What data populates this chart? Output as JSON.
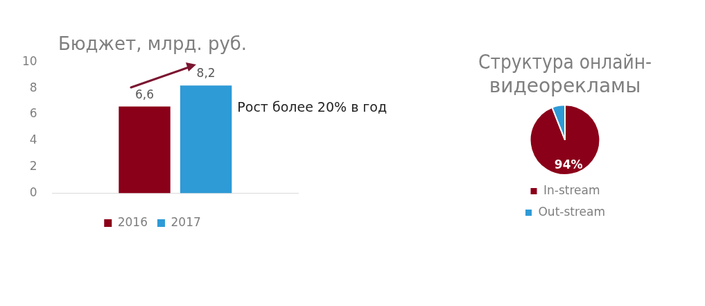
{
  "chart_data": [
    {
      "type": "bar",
      "title": "Бюджет, млрд. руб.",
      "categories": [
        null
      ],
      "series": [
        {
          "name": "2016",
          "color": "#8b0019",
          "values": [
            6.6
          ],
          "value_labels": [
            "6,6"
          ]
        },
        {
          "name": "2017",
          "color": "#2e9ad6",
          "values": [
            8.2
          ],
          "value_labels": [
            "8,2"
          ]
        }
      ],
      "ylim": [
        0,
        10
      ],
      "yticks": [
        0,
        2,
        4,
        6,
        8,
        10
      ],
      "grid": false,
      "legend": "bottom",
      "annotations": [
        "Рост более 20% в год"
      ]
    },
    {
      "type": "pie",
      "title": "Структура онлайн-видеорекламы",
      "categories": [
        "In-stream",
        "Out-stream"
      ],
      "values": [
        94,
        6
      ],
      "colors": [
        "#8b0019",
        "#2e9ad6"
      ],
      "value_labels": [
        "94%",
        null
      ],
      "legend": "bottom"
    }
  ]
}
